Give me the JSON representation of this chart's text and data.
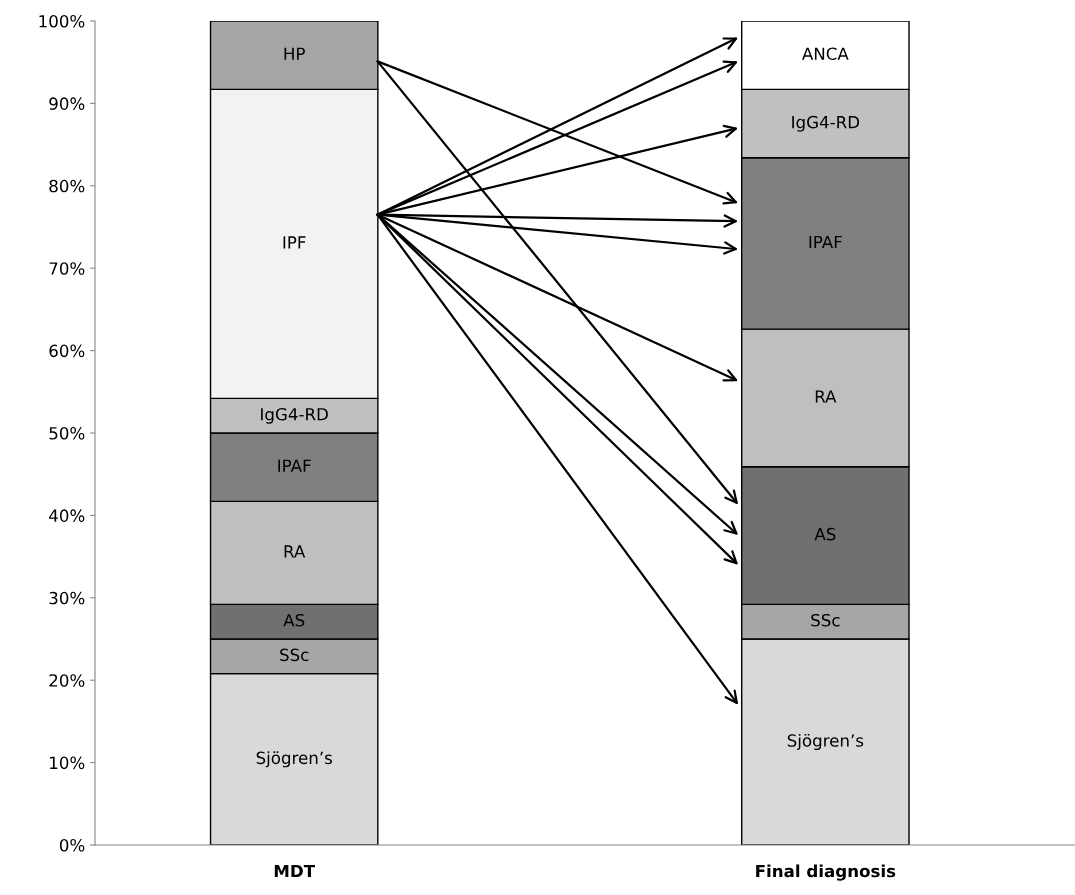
{
  "chart_data": {
    "type": "bar",
    "stacked": true,
    "categories": [
      "MDT",
      "Final diagnosis"
    ],
    "series": [
      {
        "name": "Sjögren’s",
        "color": "#d9d9d9",
        "values": [
          20.8,
          25.0
        ]
      },
      {
        "name": "SSc",
        "color": "#a6a6a6",
        "values": [
          4.2,
          4.2
        ]
      },
      {
        "name": "AS",
        "color": "#707070",
        "values": [
          4.2,
          16.7
        ]
      },
      {
        "name": "RA",
        "color": "#bfbfbf",
        "values": [
          12.5,
          16.7
        ]
      },
      {
        "name": "IPAF",
        "color": "#808080",
        "values": [
          8.3,
          20.8
        ]
      },
      {
        "name": "IgG4-RD",
        "color": "#c0c0c0",
        "values": [
          4.2,
          8.3
        ]
      },
      {
        "name": "IPF",
        "color": "#f2f2f2",
        "values": [
          37.5,
          null
        ]
      },
      {
        "name": "HP",
        "color": "#a6a6a6",
        "values": [
          8.3,
          null
        ]
      },
      {
        "name": "ANCA",
        "color": "#ffffff",
        "values": [
          null,
          8.3
        ]
      }
    ],
    "ylim": [
      0,
      100
    ],
    "yticks": [
      {
        "value": 0,
        "label": "0%"
      },
      {
        "value": 10,
        "label": "10%"
      },
      {
        "value": 20,
        "label": "20%"
      },
      {
        "value": 30,
        "label": "30%"
      },
      {
        "value": 40,
        "label": "40%"
      },
      {
        "value": 50,
        "label": "50%"
      },
      {
        "value": 60,
        "label": "60%"
      },
      {
        "value": 70,
        "label": "70%"
      },
      {
        "value": 80,
        "label": "80%"
      },
      {
        "value": 90,
        "label": "90%"
      },
      {
        "value": 100,
        "label": "100%"
      }
    ],
    "grid": false,
    "legend": false
  }
}
